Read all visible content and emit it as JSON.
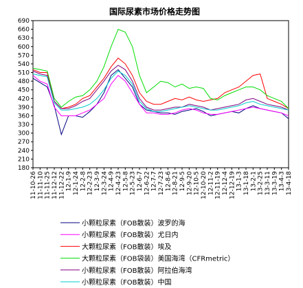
{
  "chart_data": {
    "type": "line",
    "title": "国际尿素市场价格走势图",
    "xlabel": "",
    "ylabel": "",
    "ylim": [
      180,
      690
    ],
    "yticks": [
      180,
      210,
      240,
      270,
      300,
      330,
      360,
      390,
      420,
      450,
      480,
      510,
      540,
      570,
      600,
      630,
      660,
      690
    ],
    "x": [
      "11-10-26",
      "11-11-10",
      "11-11-25",
      "11-12-12",
      "11-12-22",
      "12-1-9",
      "12-1-24",
      "12-2-8",
      "12-2-23",
      "12-3-9",
      "12-3-24",
      "12-4-9",
      "12-4-23",
      "12-5-8",
      "12-5-23",
      "12-6-7",
      "12-6-22",
      "12-7-7",
      "12-7-23",
      "12-8-6",
      "12-8-21",
      "12-9-5",
      "12-9-20",
      "12-10-5",
      "12-10-20",
      "12-11-2",
      "12-11-19",
      "12-12-4",
      "12-12-19",
      "13-1-3",
      "13-1-18",
      "13-2-1",
      "13-2-25",
      "13-3-11",
      "13-3-19",
      "13-4-3",
      "13-4-18"
    ],
    "series": [
      {
        "name": "小颗粒尿素（FOB散装）波罗的海",
        "color": "#000080",
        "values": [
          490,
          475,
          460,
          395,
          295,
          360,
          360,
          355,
          375,
          400,
          440,
          500,
          520,
          490,
          460,
          400,
          380,
          375,
          370,
          370,
          365,
          375,
          380,
          385,
          375,
          360,
          365,
          370,
          375,
          370,
          385,
          395,
          385,
          380,
          375,
          370,
          350
        ]
      },
      {
        "name": "小颗粒尿素（FOB散装）尤日内",
        "color": "#ff00ff",
        "values": [
          500,
          480,
          470,
          390,
          360,
          360,
          360,
          370,
          380,
          400,
          420,
          470,
          500,
          480,
          440,
          400,
          370,
          370,
          365,
          365,
          370,
          380,
          385,
          380,
          370,
          365,
          365,
          370,
          375,
          380,
          385,
          390,
          385,
          380,
          375,
          370,
          360
        ]
      },
      {
        "name": "大颗粒尿素（FOB散装）埃及",
        "color": "#ff0000",
        "values": [
          520,
          510,
          510,
          410,
          385,
          390,
          400,
          420,
          430,
          460,
          490,
          530,
          560,
          540,
          500,
          440,
          410,
          400,
          400,
          410,
          420,
          415,
          425,
          415,
          410,
          415,
          420,
          440,
          450,
          460,
          480,
          500,
          505,
          420,
          410,
          400,
          385
        ]
      },
      {
        "name": "大颗粒尿素（FOB袋装）美国海湾（CFRmetric）",
        "color": "#00dd00",
        "values": [
          525,
          520,
          515,
          420,
          390,
          410,
          425,
          430,
          450,
          480,
          530,
          600,
          660,
          650,
          600,
          500,
          440,
          460,
          480,
          475,
          460,
          470,
          455,
          460,
          455,
          420,
          415,
          430,
          440,
          450,
          460,
          460,
          450,
          430,
          420,
          410,
          385
        ]
      },
      {
        "name": "小颗粒尿素（FOB散装）阿拉伯海湾",
        "color": "#800080",
        "values": [
          515,
          505,
          500,
          410,
          385,
          385,
          395,
          410,
          420,
          450,
          480,
          515,
          535,
          520,
          480,
          420,
          390,
          380,
          380,
          385,
          390,
          390,
          400,
          395,
          390,
          380,
          385,
          390,
          395,
          400,
          415,
          420,
          410,
          400,
          395,
          390,
          380
        ]
      },
      {
        "name": "小颗粒尿素（FOB散装）中国",
        "color": "#00cccc",
        "values": [
          505,
          500,
          495,
          405,
          380,
          380,
          385,
          390,
          400,
          420,
          450,
          490,
          515,
          500,
          470,
          410,
          385,
          375,
          375,
          380,
          385,
          390,
          395,
          390,
          385,
          380,
          380,
          385,
          390,
          395,
          405,
          410,
          400,
          395,
          390,
          385,
          380
        ]
      }
    ]
  }
}
